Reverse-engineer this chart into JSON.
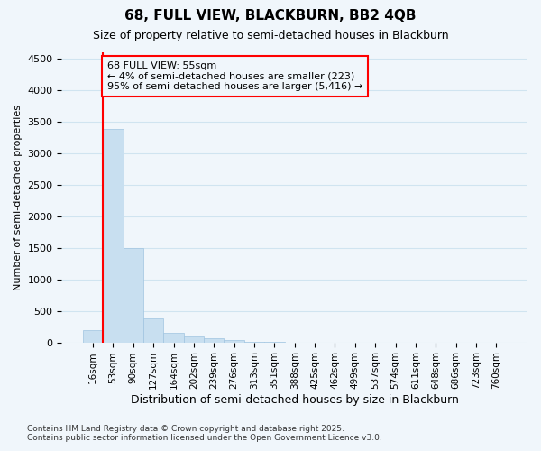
{
  "title": "68, FULL VIEW, BLACKBURN, BB2 4QB",
  "subtitle": "Size of property relative to semi-detached houses in Blackburn",
  "xlabel": "Distribution of semi-detached houses by size in Blackburn",
  "ylabel": "Number of semi-detached properties",
  "categories": [
    "16sqm",
    "53sqm",
    "90sqm",
    "127sqm",
    "164sqm",
    "202sqm",
    "239sqm",
    "276sqm",
    "313sqm",
    "351sqm",
    "388sqm",
    "425sqm",
    "462sqm",
    "499sqm",
    "537sqm",
    "574sqm",
    "611sqm",
    "648sqm",
    "686sqm",
    "723sqm",
    "760sqm"
  ],
  "values": [
    200,
    3380,
    1500,
    380,
    150,
    90,
    60,
    30,
    5,
    2,
    1,
    0,
    0,
    0,
    0,
    0,
    0,
    0,
    0,
    0,
    0
  ],
  "bar_color": "#c8dff0",
  "bar_edge_color": "#a0c4e0",
  "red_line_index": 1,
  "annotation_title": "68 FULL VIEW: 55sqm",
  "annotation_line1": "← 4% of semi-detached houses are smaller (223)",
  "annotation_line2": "95% of semi-detached houses are larger (5,416) →",
  "ylim": [
    0,
    4600
  ],
  "yticks": [
    0,
    500,
    1000,
    1500,
    2000,
    2500,
    3000,
    3500,
    4000,
    4500
  ],
  "footnote1": "Contains HM Land Registry data © Crown copyright and database right 2025.",
  "footnote2": "Contains public sector information licensed under the Open Government Licence v3.0.",
  "bg_color": "#f0f6fb",
  "grid_color": "#d0e4f0"
}
